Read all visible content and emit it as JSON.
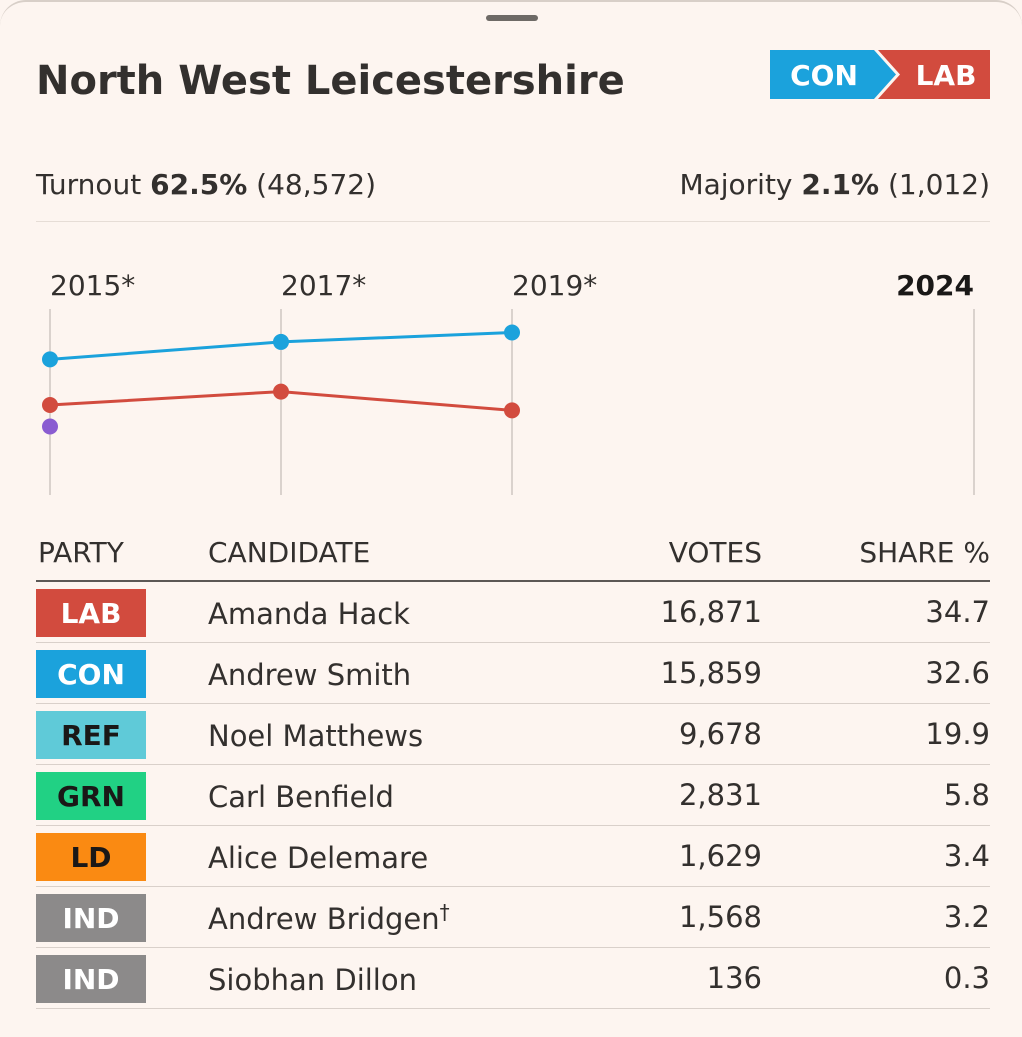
{
  "constituency": "North West Leicestershire",
  "change": {
    "from": "CON",
    "to": "LAB",
    "from_color": "#1ba2dc",
    "to_color": "#d24b3e"
  },
  "turnout": {
    "label": "Turnout",
    "pct": "62.5%",
    "votes": "(48,572)"
  },
  "majority": {
    "label": "Majority",
    "pct": "2.1%",
    "votes": "(1,012)"
  },
  "chart_data": {
    "type": "line",
    "x": [
      "2015*",
      "2017*",
      "2019*",
      "2024"
    ],
    "current_year": "2024",
    "ylim": [
      0,
      70
    ],
    "grid": "vertical lines at each year",
    "series": [
      {
        "color": "#1ba2dc",
        "values": [
          50.5,
          57.0,
          60.5,
          null
        ]
      },
      {
        "color": "#d24b3e",
        "values": [
          33.5,
          38.5,
          31.5,
          null
        ]
      },
      {
        "color": "#8a5cd1",
        "values": [
          25.5,
          null,
          null,
          null
        ]
      }
    ]
  },
  "table": {
    "headers": {
      "party": "PARTY",
      "candidate": "CANDIDATE",
      "votes": "VOTES",
      "share": "SHARE %"
    },
    "rows": [
      {
        "party": "LAB",
        "color": "#d24b3e",
        "text_color": "#ffffff",
        "candidate": "Amanda Hack",
        "mark": "",
        "votes": "16,871",
        "share": "34.7"
      },
      {
        "party": "CON",
        "color": "#1ba2dc",
        "text_color": "#ffffff",
        "candidate": "Andrew Smith",
        "mark": "",
        "votes": "15,859",
        "share": "32.6"
      },
      {
        "party": "REF",
        "color": "#5fcad8",
        "text_color": "#1a1817",
        "candidate": "Noel Matthews",
        "mark": "",
        "votes": "9,678",
        "share": "19.9"
      },
      {
        "party": "GRN",
        "color": "#21d184",
        "text_color": "#1a1817",
        "candidate": "Carl Benfield",
        "mark": "",
        "votes": "2,831",
        "share": "5.8"
      },
      {
        "party": "LD",
        "color": "#fa8a12",
        "text_color": "#1a1817",
        "candidate": "Alice Delemare",
        "mark": "",
        "votes": "1,629",
        "share": "3.4"
      },
      {
        "party": "IND",
        "color": "#8c8a8a",
        "text_color": "#ffffff",
        "candidate": "Andrew Bridgen",
        "mark": "†",
        "votes": "1,568",
        "share": "3.2"
      },
      {
        "party": "IND",
        "color": "#8c8a8a",
        "text_color": "#ffffff",
        "candidate": "Siobhan Dillon",
        "mark": "",
        "votes": "136",
        "share": "0.3"
      }
    ]
  }
}
